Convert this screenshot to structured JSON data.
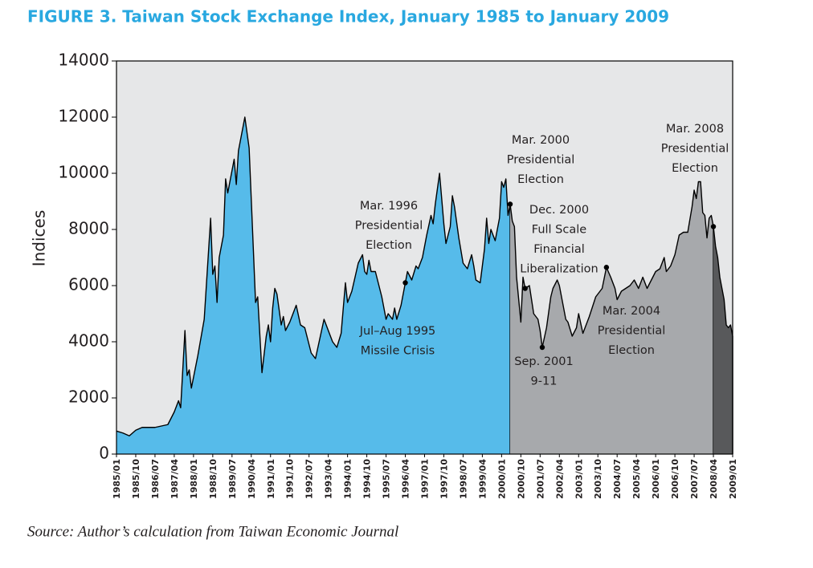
{
  "chart_data": {
    "type": "area",
    "title": "FIGURE 3. Taiwan Stock Exchange Index, January 1985 to January 2009",
    "y_label": "Indices",
    "source": "Source: Author’s calculation from Taiwan Economic Journal",
    "xlim": [
      "1985/01",
      "2009/01"
    ],
    "xticks": [
      "1985/01",
      "1985/10",
      "1986/07",
      "1987/04",
      "1988/01",
      "1988/10",
      "1989/07",
      "1990/04",
      "1991/01",
      "1991/10",
      "1992/07",
      "1993/04",
      "1994/01",
      "1994/10",
      "1995/07",
      "1996/04",
      "1997/01",
      "1997/10",
      "1998/07",
      "1999/04",
      "2000/01",
      "2000/10",
      "2001/07",
      "2002/04",
      "2003/01",
      "2003/10",
      "2004/07",
      "2005/04",
      "2006/01",
      "2006/10",
      "2007/07",
      "2008/04",
      "2009/01"
    ],
    "ylim": [
      0,
      14000
    ],
    "yticks": [
      0,
      2000,
      4000,
      6000,
      8000,
      10000,
      12000,
      14000
    ],
    "grid": false,
    "series": [
      {
        "color": "#56bbea",
        "x": [
          "1985/01",
          "1985/04",
          "1985/07",
          "1985/10",
          "1986/01",
          "1986/07",
          "1987/01",
          "1987/04",
          "1987/06",
          "1987/07",
          "1987/09",
          "1987/10",
          "1987/11",
          "1987/12",
          "1988/03",
          "1988/06",
          "1988/09",
          "1988/10",
          "1988/11",
          "1988/12",
          "1989/01",
          "1989/03",
          "1989/04",
          "1989/05",
          "1989/08",
          "1989/09",
          "1989/10",
          "1990/01",
          "1990/03",
          "1990/06",
          "1990/07",
          "1990/09",
          "1990/11",
          "1990/12",
          "1991/01",
          "1991/02",
          "1991/03",
          "1991/04",
          "1991/06",
          "1991/07",
          "1991/08",
          "1991/10",
          "1992/01",
          "1992/03",
          "1992/05",
          "1992/08",
          "1992/10",
          "1993/02",
          "1993/06",
          "1993/08",
          "1993/10",
          "1993/12",
          "1994/01",
          "1994/03",
          "1994/06",
          "1994/08",
          "1994/09",
          "1994/10",
          "1994/11",
          "1994/12",
          "1995/02",
          "1995/05",
          "1995/07",
          "1995/08",
          "1995/10",
          "1995/11",
          "1995/12",
          "1996/02",
          "1996/04",
          "1996/05",
          "1996/07",
          "1996/09",
          "1996/10",
          "1996/12",
          "1997/02",
          "1997/04",
          "1997/05",
          "1997/06",
          "1997/08",
          "1997/10",
          "1997/11",
          "1998/01",
          "1998/02",
          "1998/03",
          "1998/05",
          "1998/07",
          "1998/09",
          "1998/11",
          "1998/12",
          "1999/01",
          "1999/03",
          "1999/05",
          "1999/06",
          "1999/07",
          "1999/08",
          "1999/10",
          "1999/12",
          "2000/01",
          "2000/02",
          "2000/03",
          "2000/04",
          "2000/05"
        ],
        "values": [
          820,
          750,
          650,
          850,
          950,
          950,
          1050,
          1500,
          1900,
          1650,
          4400,
          2800,
          3000,
          2350,
          3500,
          4800,
          8400,
          6400,
          6700,
          5400,
          7000,
          7800,
          9800,
          9300,
          10500,
          9600,
          10800,
          12000,
          10900,
          5400,
          5600,
          2900,
          4200,
          4600,
          4000,
          5200,
          5900,
          5700,
          4600,
          4900,
          4400,
          4700,
          5300,
          4600,
          4500,
          3600,
          3400,
          4800,
          4000,
          3800,
          4300,
          6100,
          5400,
          5800,
          6800,
          7100,
          6500,
          6400,
          6900,
          6500,
          6500,
          5600,
          4800,
          5000,
          4800,
          5200,
          4800,
          5300,
          6100,
          6500,
          6200,
          6700,
          6600,
          7000,
          7800,
          8500,
          8200,
          8900,
          10000,
          8200,
          7500,
          8100,
          9200,
          8800,
          7700,
          6800,
          6600,
          7100,
          6700,
          6200,
          6100,
          7300,
          8400,
          7500,
          8000,
          7600,
          8400,
          9700,
          9500,
          9800,
          8500,
          8900
        ]
      },
      {
        "color": "#a7a9ac",
        "x": [
          "2000/05",
          "2000/06",
          "2000/07",
          "2000/08",
          "2000/09",
          "2000/10",
          "2000/11",
          "2000/12",
          "2001/02",
          "2001/04",
          "2001/06",
          "2001/07",
          "2001/08",
          "2001/10",
          "2001/12",
          "2002/01",
          "2002/03",
          "2002/04",
          "2002/06",
          "2002/07",
          "2002/08",
          "2002/10",
          "2002/12",
          "2003/01",
          "2003/03",
          "2003/04",
          "2003/06",
          "2003/09",
          "2003/12",
          "2004/02",
          "2004/04",
          "2004/06",
          "2004/07",
          "2004/09",
          "2004/11",
          "2005/01",
          "2005/03",
          "2005/05",
          "2005/07",
          "2005/09",
          "2005/11",
          "2006/01",
          "2006/03",
          "2006/05",
          "2006/06",
          "2006/08",
          "2006/10",
          "2006/12",
          "2007/02",
          "2007/04",
          "2007/06",
          "2007/07",
          "2007/08",
          "2007/09",
          "2007/10",
          "2007/11",
          "2007/12",
          "2008/01",
          "2008/02",
          "2008/03",
          "2008/04"
        ],
        "values": [
          8900,
          8300,
          8100,
          6300,
          5500,
          4700,
          6300,
          5900,
          6000,
          5000,
          4800,
          4400,
          3800,
          4500,
          5600,
          5900,
          6200,
          6000,
          5200,
          4800,
          4700,
          4200,
          4500,
          5000,
          4300,
          4500,
          4900,
          5600,
          5900,
          6650,
          6300,
          5900,
          5500,
          5800,
          5900,
          6000,
          6200,
          5900,
          6300,
          5900,
          6200,
          6500,
          6600,
          7000,
          6500,
          6700,
          7100,
          7800,
          7900,
          7900,
          8800,
          9400,
          9100,
          9700,
          9700,
          8600,
          8500,
          7700,
          8400,
          8500,
          8100
        ]
      },
      {
        "color": "#58595b",
        "x": [
          "2008/04",
          "2008/05",
          "2008/06",
          "2008/07",
          "2008/09",
          "2008/10",
          "2008/11",
          "2008/12",
          "2009/01"
        ],
        "values": [
          8100,
          7400,
          7000,
          6300,
          5500,
          4600,
          4500,
          4600,
          4200
        ]
      }
    ],
    "annotations": [
      {
        "lines": [
          "Mar. 1996",
          "Presidential",
          "Election"
        ],
        "x": "1996/04",
        "y": 6100
      },
      {
        "lines": [
          "Jul–Aug 1995",
          "Missile Crisis"
        ]
      },
      {
        "lines": [
          "Mar. 2000",
          "Presidential",
          "Election"
        ],
        "x": "2000/05",
        "y": 8900
      },
      {
        "lines": [
          "Dec. 2000",
          "Full Scale",
          "Financial",
          "Liberalization"
        ],
        "x": "2000/12",
        "y": 5900
      },
      {
        "lines": [
          "Sep. 2001",
          "9-11"
        ],
        "x": "2001/08",
        "y": 3800
      },
      {
        "lines": [
          "Mar. 2004",
          "Presidential",
          "Election"
        ],
        "x": "2004/02",
        "y": 6650
      },
      {
        "lines": [
          "Mar. 2008",
          "Presidential",
          "Election"
        ],
        "x": "2008/04",
        "y": 8100
      }
    ]
  }
}
